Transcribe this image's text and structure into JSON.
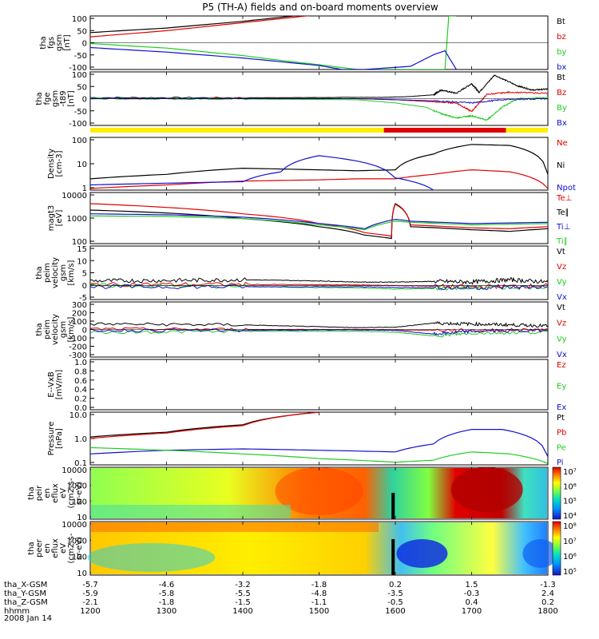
{
  "title": "P5 (TH-A) fields and on-board moments overview",
  "date_label": "2008 Jan 14",
  "colors": {
    "black": "#000000",
    "red": "#e00000",
    "green": "#22cc22",
    "blue": "#1010d0",
    "yellow": "#ffee00"
  },
  "chart_data": [
    {
      "type": "line",
      "panel": "fgs",
      "ylabel": [
        "tha",
        "fgs",
        "gsm",
        "[nT]"
      ],
      "yticks": [
        "100",
        "50",
        "0",
        "-50",
        "-100"
      ],
      "ylim": [
        -100,
        100
      ],
      "legend": [
        {
          "label": "Bt",
          "color": "black"
        },
        {
          "label": "bz",
          "color": "red"
        },
        {
          "label": "by",
          "color": "green"
        },
        {
          "label": "bx",
          "color": "blue"
        }
      ],
      "series": [
        {
          "color": "black",
          "x": [
            1200,
            1300,
            1400,
            1450,
            1500
          ],
          "y": [
            38,
            55,
            80,
            95,
            110
          ]
        },
        {
          "color": "red",
          "x": [
            1200,
            1300,
            1400,
            1450,
            1500
          ],
          "y": [
            22,
            45,
            75,
            90,
            105
          ]
        },
        {
          "color": "green",
          "x": [
            1200,
            1300,
            1400,
            1450,
            1500,
            1550,
            1665,
            1670,
            1680
          ],
          "y": [
            -3,
            -20,
            -48,
            -66,
            -82,
            -100,
            -100,
            100,
            100
          ]
        },
        {
          "color": "blue",
          "x": [
            1200,
            1300,
            1400,
            1500,
            1530,
            1560,
            1620,
            1650,
            1665,
            1680
          ],
          "y": [
            -18,
            -35,
            -57,
            -85,
            -100,
            -100,
            -88,
            -45,
            -30,
            -100
          ]
        }
      ]
    },
    {
      "type": "line",
      "panel": "fge",
      "ylabel": [
        "tha",
        "fge",
        "gsm",
        "-t89",
        "[nT]"
      ],
      "yticks": [
        "100",
        "50",
        "0",
        "-50",
        "-100"
      ],
      "ylim": [
        -125,
        125
      ],
      "legend": [
        {
          "label": "Bt",
          "color": "black"
        },
        {
          "label": "Bz",
          "color": "red"
        },
        {
          "label": "By",
          "color": "green"
        },
        {
          "label": "Bx",
          "color": "blue"
        }
      ],
      "series": [
        {
          "color": "black",
          "x": [
            1200,
            1400,
            1550,
            1580,
            1620,
            1650,
            1660,
            1680,
            1700,
            1710,
            1730,
            1760,
            1780,
            1800
          ],
          "y": [
            5,
            4,
            6,
            6,
            10,
            18,
            40,
            25,
            70,
            30,
            110,
            60,
            40,
            45
          ]
        },
        {
          "color": "red",
          "x": [
            1200,
            1400,
            1550,
            1600,
            1650,
            1680,
            1700,
            1720,
            1750,
            1800
          ],
          "y": [
            0,
            2,
            0,
            -5,
            -15,
            -20,
            -60,
            20,
            30,
            25
          ]
        },
        {
          "color": "green",
          "x": [
            1200,
            1400,
            1550,
            1600,
            1640,
            1660,
            1680,
            1700,
            1720,
            1740,
            1760,
            1800
          ],
          "y": [
            0,
            -2,
            -5,
            -20,
            -40,
            -70,
            -90,
            -80,
            -100,
            -40,
            0,
            5
          ]
        },
        {
          "color": "blue",
          "x": [
            1200,
            1400,
            1550,
            1600,
            1650,
            1700,
            1740,
            1800
          ],
          "y": [
            1,
            1,
            0,
            -5,
            -10,
            -20,
            -5,
            0
          ]
        }
      ]
    },
    {
      "type": "line",
      "panel": "density",
      "scale": "log",
      "ylabel": [
        "Density",
        "[cm-3]"
      ],
      "yticks": [
        "100",
        "10",
        "1"
      ],
      "ylim": [
        0.5,
        200
      ],
      "legend": [
        {
          "label": "Ne",
          "color": "red"
        },
        {
          "label": "Ni",
          "color": "black"
        },
        {
          "label": "Npot",
          "color": "blue"
        }
      ],
      "series": [
        {
          "color": "black",
          "x": [
            1200,
            1300,
            1400,
            1500,
            1550,
            1600,
            1650,
            1700,
            1750,
            1800
          ],
          "y": [
            1.8,
            3,
            6,
            5,
            4.5,
            5,
            30,
            90,
            80,
            3
          ]
        },
        {
          "color": "red",
          "x": [
            1200,
            1300,
            1400,
            1500,
            1550,
            1600,
            1650,
            1700,
            1750,
            1800
          ],
          "y": [
            0.6,
            0.9,
            1.4,
            1.6,
            1.8,
            1.8,
            3,
            5,
            4,
            0.6
          ]
        },
        {
          "color": "blue",
          "x": [
            1200,
            1300,
            1400,
            1450,
            1500,
            1600,
            1650
          ],
          "y": [
            0.9,
            1.1,
            1.3,
            4,
            25,
            2,
            0.5
          ]
        }
      ]
    },
    {
      "type": "line",
      "panel": "temperature",
      "scale": "log",
      "ylabel": [
        "magt3",
        "[eV]"
      ],
      "yticks": [
        "10000",
        "1000",
        "100"
      ],
      "ylim": [
        40,
        10000
      ],
      "legend": [
        {
          "label": "Te⊥",
          "color": "red"
        },
        {
          "label": "Te∥",
          "color": "black"
        },
        {
          "label": "Ti⊥",
          "color": "blue"
        },
        {
          "label": "Ti∥",
          "color": "green"
        }
      ],
      "series": [
        {
          "color": "black",
          "x": [
            1200,
            1300,
            1400,
            1500,
            1560,
            1595,
            1600,
            1620,
            1700,
            1750,
            1800
          ],
          "y": [
            1500,
            1100,
            600,
            250,
            100,
            70,
            3000,
            250,
            180,
            150,
            200
          ]
        },
        {
          "color": "red",
          "x": [
            1200,
            1300,
            1400,
            1500,
            1560,
            1595,
            1600,
            1620,
            1700,
            1750,
            1800
          ],
          "y": [
            3000,
            2000,
            1000,
            350,
            130,
            90,
            2800,
            300,
            220,
            200,
            250
          ]
        },
        {
          "color": "blue",
          "x": [
            1200,
            1300,
            1400,
            1500,
            1560,
            1600,
            1620,
            1700,
            1800
          ],
          "y": [
            1000,
            900,
            700,
            350,
            200,
            550,
            450,
            350,
            400
          ]
        },
        {
          "color": "green",
          "x": [
            1200,
            1300,
            1400,
            1500,
            1560,
            1600,
            1620,
            1700,
            1800
          ],
          "y": [
            800,
            750,
            600,
            300,
            180,
            450,
            400,
            300,
            350
          ]
        }
      ]
    },
    {
      "type": "line",
      "panel": "velocity1",
      "ylabel": [
        "tha",
        "peim",
        "velocity",
        "gsm",
        "[km/s]"
      ],
      "yticks": [
        "15",
        "10",
        "5",
        "0",
        "-5"
      ],
      "ylim": [
        -6,
        17
      ],
      "legend": [
        {
          "label": "Vt",
          "color": "black"
        },
        {
          "label": "Vz",
          "color": "red"
        },
        {
          "label": "Vy",
          "color": "green"
        },
        {
          "label": "Vx",
          "color": "blue"
        }
      ],
      "series": [
        {
          "color": "black",
          "x": [
            1200,
            1300,
            1400,
            1500,
            1550,
            1600,
            1650,
            1700,
            1750,
            1800
          ],
          "y": [
            2,
            2.2,
            2.5,
            2,
            1.5,
            1.5,
            1.8,
            1.5,
            2.5,
            1.5
          ]
        },
        {
          "color": "red",
          "x": [
            1200,
            1400,
            1550,
            1600,
            1700,
            1800
          ],
          "y": [
            0.5,
            0.5,
            0.3,
            0,
            -0.5,
            0
          ]
        },
        {
          "color": "green",
          "x": [
            1200,
            1400,
            1550,
            1600,
            1700,
            1800
          ],
          "y": [
            0,
            -0.5,
            -1,
            -1.5,
            -1,
            -0.5
          ]
        },
        {
          "color": "blue",
          "x": [
            1200,
            1400,
            1550,
            1600,
            1700,
            1800
          ],
          "y": [
            -0.5,
            -0.5,
            -0.5,
            -0.8,
            -1,
            -0.5
          ]
        }
      ]
    },
    {
      "type": "line",
      "panel": "velocity2",
      "ylabel": [
        "tha",
        "peim",
        "velocity",
        "gsm",
        "[km/s]"
      ],
      "yticks": [
        "300",
        "200",
        "100",
        "0",
        "-100",
        "-200",
        "-300"
      ],
      "ylim": [
        -300,
        300
      ],
      "legend": [
        {
          "label": "Vt",
          "color": "black"
        },
        {
          "label": "Vz",
          "color": "red"
        },
        {
          "label": "Vy",
          "color": "green"
        },
        {
          "label": "Vx",
          "color": "blue"
        }
      ],
      "series": [
        {
          "color": "black",
          "x": [
            1200,
            1400,
            1500,
            1550,
            1600,
            1650,
            1700,
            1750,
            1800
          ],
          "y": [
            60,
            50,
            30,
            20,
            25,
            70,
            60,
            50,
            40
          ]
        },
        {
          "color": "red",
          "x": [
            1200,
            1400,
            1550,
            1600,
            1700,
            1800
          ],
          "y": [
            5,
            0,
            0,
            -5,
            -10,
            0
          ]
        },
        {
          "color": "green",
          "x": [
            1200,
            1400,
            1550,
            1600,
            1650,
            1700,
            1800
          ],
          "y": [
            -30,
            -20,
            -20,
            -30,
            -70,
            -40,
            -30
          ]
        },
        {
          "color": "blue",
          "x": [
            1200,
            1400,
            1550,
            1600,
            1650,
            1700,
            1800
          ],
          "y": [
            -10,
            -10,
            -5,
            -10,
            -50,
            -20,
            -10
          ]
        }
      ]
    },
    {
      "type": "line",
      "panel": "efield",
      "ylabel": [
        "E--VxB",
        "[mV/m]"
      ],
      "yticks": [
        "1.0",
        "0.8",
        "0.6",
        "0.4",
        "0.2",
        "0.0"
      ],
      "ylim": [
        0,
        1
      ],
      "legend": [
        {
          "label": "Ez",
          "color": "red"
        },
        {
          "label": "Ey",
          "color": "green"
        },
        {
          "label": "Ex",
          "color": "blue"
        }
      ],
      "series": []
    },
    {
      "type": "line",
      "panel": "pressure",
      "scale": "log",
      "ylabel": [
        "Pressure",
        "[nPa]"
      ],
      "yticks": [
        "10.0",
        "1.0",
        "0.1"
      ],
      "ylim": [
        0.06,
        20
      ],
      "legend": [
        {
          "label": "Pt",
          "color": "black"
        },
        {
          "label": "Pb",
          "color": "red"
        },
        {
          "label": "Pe",
          "color": "green"
        },
        {
          "label": "Pi",
          "color": "blue"
        }
      ],
      "series": [
        {
          "color": "black",
          "x": [
            1200,
            1300,
            1400,
            1500
          ],
          "y": [
            1.3,
            2.2,
            5,
            20
          ]
        },
        {
          "color": "red",
          "x": [
            1200,
            1300,
            1400,
            1500
          ],
          "y": [
            1.1,
            2,
            4.5,
            20
          ]
        },
        {
          "color": "blue",
          "x": [
            1200,
            1300,
            1400,
            1500,
            1600,
            1650,
            1700,
            1740,
            1800
          ],
          "y": [
            0.2,
            0.3,
            0.35,
            0.3,
            0.25,
            0.6,
            3,
            3,
            0.15
          ]
        },
        {
          "color": "green",
          "x": [
            1200,
            1300,
            1400,
            1500,
            1600,
            1650,
            1700,
            1750,
            1800
          ],
          "y": [
            0.4,
            0.3,
            0.2,
            0.12,
            0.08,
            0.1,
            0.25,
            0.2,
            0.07
          ]
        }
      ]
    },
    {
      "type": "heatmap",
      "panel": "ion_spectrogram",
      "ylabel": [
        "tha",
        "peir",
        "en",
        "eflux",
        "eV",
        "(cm2-s-",
        "sr-eV)"
      ],
      "yticks": [
        "10000",
        "1000",
        "100",
        "10"
      ],
      "colorbar_ticks": [
        "10⁷",
        "10⁶",
        "10⁵",
        "10⁴"
      ]
    },
    {
      "type": "heatmap",
      "panel": "electron_spectrogram",
      "ylabel": [
        "tha",
        "peer",
        "en",
        "eflux",
        "eV",
        "(cm2-s-",
        "sr-eV)"
      ],
      "yticks": [
        "10000",
        "1000",
        "100",
        "10"
      ],
      "colorbar_ticks": [
        "10⁸",
        "10⁷",
        "10⁶",
        "10⁵"
      ]
    }
  ],
  "axis": {
    "rows": [
      {
        "label": "tha_X-GSM",
        "values": [
          "-5.7",
          "-4.6",
          "-3.2",
          "-1.8",
          "0.2",
          "1.5",
          "-1.3"
        ]
      },
      {
        "label": "tha_Y-GSM",
        "values": [
          "-5.9",
          "-5.8",
          "-5.5",
          "-4.8",
          "-3.5",
          "-0.3",
          "2.4"
        ]
      },
      {
        "label": "tha_Z-GSM",
        "values": [
          "-2.1",
          "-1.8",
          "-1.5",
          "-1.1",
          "-0.5",
          "0.4",
          "0.2"
        ]
      },
      {
        "label": "hhmm",
        "values": [
          "1200",
          "1300",
          "1400",
          "1500",
          "1600",
          "1700",
          "1800"
        ]
      }
    ]
  }
}
